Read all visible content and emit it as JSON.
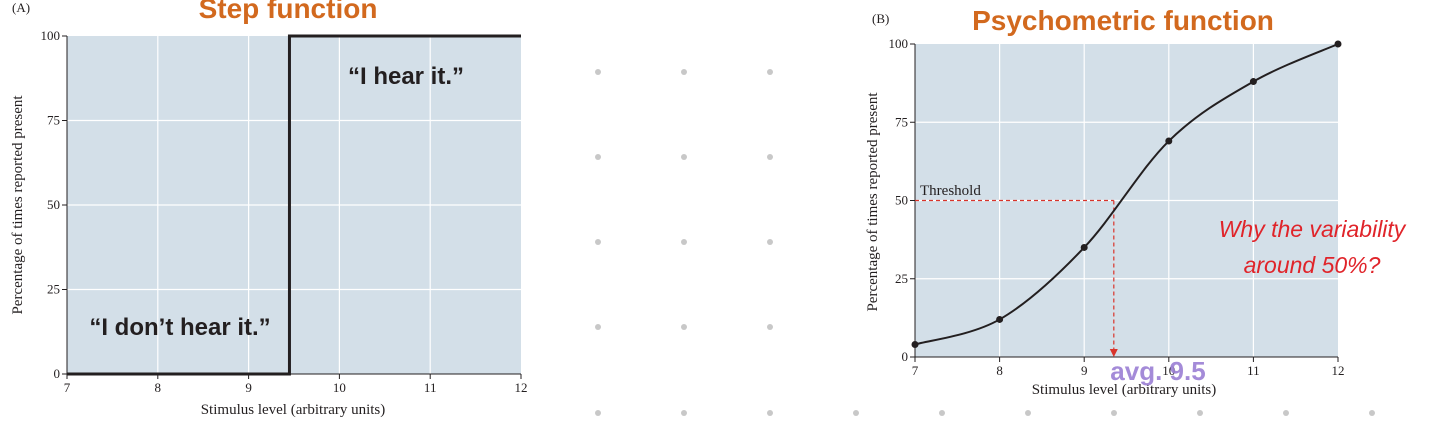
{
  "dot_color": "#c8c8c8",
  "chart_data": [
    {
      "type": "line",
      "panel_label": "(A)",
      "title": "Step function",
      "xlabel": "Stimulus level (arbitrary units)",
      "ylabel": "Percentage of times reported present",
      "xlim": [
        7,
        12
      ],
      "ylim": [
        0,
        100
      ],
      "xticks": [
        "7",
        "8",
        "9",
        "10",
        "11",
        "12"
      ],
      "yticks": [
        "0",
        "25",
        "50",
        "75",
        "100"
      ],
      "grid": true,
      "series": [
        {
          "x": [
            7,
            9.45,
            9.45,
            12
          ],
          "y": [
            0,
            0,
            100,
            100
          ]
        }
      ],
      "annotations": [
        "“I hear it.”",
        "“I don’t hear it.”"
      ],
      "colors": {
        "plot_bg": "#d3dfe8",
        "title": "#d2691e",
        "line": "#231f20"
      }
    },
    {
      "type": "line",
      "panel_label": "(B)",
      "title": "Psychometric function",
      "xlabel": "Stimulus level (arbitrary units)",
      "ylabel": "Percentage of times reported present",
      "xlim": [
        7,
        12
      ],
      "ylim": [
        0,
        100
      ],
      "xticks": [
        "7",
        "8",
        "9",
        "10",
        "11",
        "12"
      ],
      "yticks": [
        "0",
        "25",
        "50",
        "75",
        "100"
      ],
      "grid": true,
      "series": [
        {
          "x": [
            7,
            8,
            9,
            10,
            11,
            12
          ],
          "y": [
            4,
            12,
            35,
            69,
            88,
            100
          ]
        }
      ],
      "threshold": {
        "label": "Threshold",
        "y": 50,
        "x": 9.35
      },
      "handwritten_note": "avg. 9.5",
      "question": [
        "Why the variability",
        "around 50%?"
      ],
      "colors": {
        "plot_bg": "#d3dfe8",
        "title": "#d2691e",
        "line": "#231f20",
        "threshold": "#d9342b",
        "question": "#e0242a",
        "note": "#9b7fd4"
      }
    }
  ]
}
